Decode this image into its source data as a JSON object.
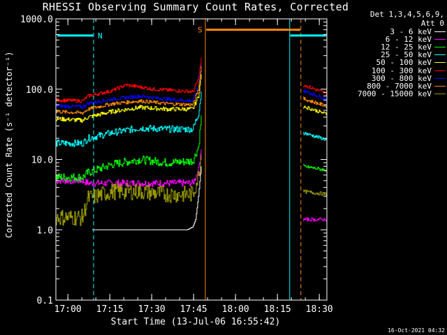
{
  "title": "RHESSI Observing Summary Count Rates, Corrected",
  "footer": "16-Oct-2021 04:32",
  "legend_header": [
    "Det 1,3,4,5,6,9,",
    "Att 0"
  ],
  "markers": {
    "N": "N",
    "S": "S"
  },
  "chart_data": {
    "type": "line",
    "title": "RHESSI Observing Summary Count Rates, Corrected",
    "xlabel": "Start Time (13-Jul-06 16:55:42)",
    "ylabel": "Corrected Count Rate (s⁻¹ detector⁻¹)",
    "yscale": "log",
    "ylim": [
      0.1,
      1000
    ],
    "xlim_min": [
      0,
      97
    ],
    "xticks": [
      {
        "min": 4.3,
        "label": "17:00"
      },
      {
        "min": 19.3,
        "label": "17:15"
      },
      {
        "min": 34.3,
        "label": "17:30"
      },
      {
        "min": 49.3,
        "label": "17:45"
      },
      {
        "min": 64.3,
        "label": "18:00"
      },
      {
        "min": 79.3,
        "label": "18:15"
      },
      {
        "min": 94.3,
        "label": "18:30"
      }
    ],
    "yticks": [
      {
        "v": 0.1,
        "label": "0.1"
      },
      {
        "v": 1,
        "label": "1.0"
      },
      {
        "v": 10,
        "label": "10.0"
      },
      {
        "v": 100,
        "label": "100.0"
      },
      {
        "v": 1000,
        "label": "1000.0"
      }
    ],
    "legend_position": "top-right, outside plot",
    "series": [
      {
        "name": "3 - 6 keV",
        "color": "#ffffff",
        "type": "noisy",
        "points": [
          [
            13,
            1.0
          ],
          [
            47,
            1.0
          ],
          [
            49,
            1.1
          ],
          [
            50,
            1.4
          ],
          [
            51,
            3
          ],
          [
            52,
            8
          ]
        ],
        "jitter": 0.0,
        "sparse": true
      },
      {
        "name": "6 - 12 keV",
        "color": "#ff00ff",
        "points": [
          [
            0,
            5
          ],
          [
            9.5,
            5
          ],
          [
            11.5,
            4.6
          ],
          [
            30,
            4.6
          ],
          [
            49,
            4.6
          ],
          [
            51,
            7
          ],
          [
            52,
            15
          ]
        ],
        "jitter": 0.05
      },
      {
        "name": "12 - 25 keV",
        "color": "#00ff00",
        "points": [
          [
            0,
            5.6
          ],
          [
            9.5,
            5.6
          ],
          [
            11.5,
            6.5
          ],
          [
            20,
            8.5
          ],
          [
            30,
            10
          ],
          [
            40,
            9
          ],
          [
            49,
            9.5
          ],
          [
            51,
            15
          ],
          [
            52,
            40
          ]
        ],
        "jitter": 0.06
      },
      {
        "name": "25 - 50 keV",
        "color": "#00ffff",
        "points": [
          [
            0,
            17
          ],
          [
            9.5,
            17
          ],
          [
            11.5,
            20
          ],
          [
            20,
            24
          ],
          [
            30,
            28
          ],
          [
            40,
            27
          ],
          [
            49,
            27
          ],
          [
            51,
            45
          ],
          [
            52,
            90
          ]
        ],
        "jitter": 0.05
      },
      {
        "name": "50 - 100 keV",
        "color": "#ffff00",
        "points": [
          [
            0,
            38
          ],
          [
            9.5,
            36
          ],
          [
            11.5,
            40
          ],
          [
            20,
            48
          ],
          [
            30,
            55
          ],
          [
            40,
            52
          ],
          [
            49,
            52
          ],
          [
            51,
            80
          ],
          [
            52,
            160
          ]
        ],
        "jitter": 0.03
      },
      {
        "name": "100 - 300 keV",
        "color": "#ff0000",
        "points": [
          [
            0,
            70
          ],
          [
            9.5,
            68
          ],
          [
            11.5,
            80
          ],
          [
            20,
            95
          ],
          [
            25,
            115
          ],
          [
            35,
            100
          ],
          [
            49,
            92
          ],
          [
            51,
            140
          ],
          [
            52,
            270
          ]
        ],
        "jitter": 0.025
      },
      {
        "name": "300 - 800 keV",
        "color": "#0000ff",
        "points": [
          [
            0,
            58
          ],
          [
            9.5,
            56
          ],
          [
            11.5,
            63
          ],
          [
            20,
            72
          ],
          [
            30,
            80
          ],
          [
            40,
            72
          ],
          [
            49,
            68
          ],
          [
            51,
            110
          ],
          [
            52,
            230
          ]
        ],
        "jitter": 0.025
      },
      {
        "name": "800 - 7000 keV",
        "color": "#ff8800",
        "points": [
          [
            0,
            48
          ],
          [
            9.5,
            46
          ],
          [
            11.5,
            52
          ],
          [
            20,
            62
          ],
          [
            30,
            68
          ],
          [
            40,
            62
          ],
          [
            49,
            60
          ],
          [
            51,
            100
          ],
          [
            52,
            210
          ]
        ],
        "jitter": 0.025
      },
      {
        "name": "7000 - 15000 keV",
        "color": "#999900",
        "points": [
          [
            0,
            1.5
          ],
          [
            9.5,
            1.5
          ],
          [
            11.5,
            2.8
          ],
          [
            20,
            3.5
          ],
          [
            30,
            3.5
          ],
          [
            40,
            3.2
          ],
          [
            49,
            3.2
          ],
          [
            51,
            6
          ],
          [
            52,
            12
          ]
        ],
        "jitter": 0.12
      }
    ],
    "series_after": [
      {
        "color": "#ff0000",
        "points": [
          [
            88.5,
            115
          ],
          [
            97,
            86
          ]
        ]
      },
      {
        "color": "#0000ff",
        "points": [
          [
            88.5,
            95
          ],
          [
            97,
            72
          ]
        ]
      },
      {
        "color": "#ff8800",
        "points": [
          [
            88.5,
            73
          ],
          [
            97,
            57
          ]
        ]
      },
      {
        "color": "#ffff00",
        "points": [
          [
            88.5,
            57
          ],
          [
            97,
            44
          ]
        ]
      },
      {
        "color": "#00ffff",
        "points": [
          [
            88.5,
            24
          ],
          [
            97,
            19
          ]
        ]
      },
      {
        "color": "#00ff00",
        "points": [
          [
            88.5,
            8
          ],
          [
            97,
            7
          ]
        ]
      },
      {
        "color": "#999900",
        "points": [
          [
            88.5,
            3.5
          ],
          [
            97,
            3.2
          ]
        ]
      },
      {
        "color": "#ff00ff",
        "points": [
          [
            88.5,
            1.4
          ],
          [
            97,
            1.4
          ]
        ]
      }
    ],
    "vlines": [
      {
        "min": 0,
        "color": "#00ffff",
        "style": "solid"
      },
      {
        "min": 13.5,
        "color": "#00ffff",
        "style": "dashed"
      },
      {
        "min": 53.5,
        "color": "#ff8800",
        "style": "solid"
      },
      {
        "min": 83.7,
        "color": "#00ffff",
        "style": "solid"
      },
      {
        "min": 87.7,
        "color": "#ff8800",
        "style": "dashed"
      },
      {
        "min": 97,
        "color": "#00ffff",
        "style": "dashed"
      }
    ],
    "hbars": [
      {
        "from": 0.5,
        "to": 13.3,
        "v": 580,
        "color": "#00ffff"
      },
      {
        "from": 53.8,
        "to": 87.5,
        "v": 700,
        "color": "#ff8800"
      },
      {
        "from": 83.9,
        "to": 96.8,
        "v": 580,
        "color": "#00ffff"
      }
    ]
  }
}
